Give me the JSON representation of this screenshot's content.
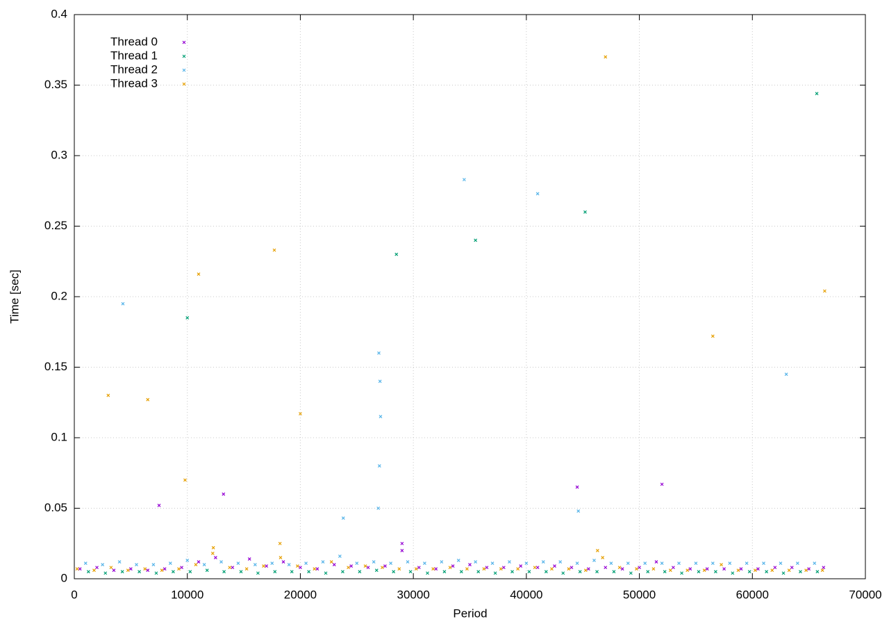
{
  "chart_data": {
    "type": "scatter",
    "x_label": "Period",
    "y_label": "Time [sec]",
    "xlim": [
      0,
      70000
    ],
    "xticks": [
      0,
      10000,
      20000,
      30000,
      40000,
      50000,
      60000,
      70000
    ],
    "ylim": [
      0,
      0.4
    ],
    "yticks": [
      0,
      0.05,
      0.1,
      0.15,
      0.2,
      0.25,
      0.3,
      0.35,
      0.4
    ],
    "grid": true,
    "legend": "top-left",
    "series": [
      {
        "name": "Thread 0",
        "color": "#9400d3",
        "x": [
          500,
          2000,
          3500,
          5000,
          6500,
          8000,
          9500,
          11000,
          12500,
          14000,
          15500,
          17000,
          18500,
          20000,
          21500,
          23000,
          24500,
          26000,
          27500,
          29000,
          30500,
          32000,
          33500,
          35000,
          36500,
          38000,
          39500,
          41000,
          42500,
          44000,
          45500,
          47000,
          48500,
          50000,
          51500,
          53000,
          54500,
          56000,
          57500,
          59000,
          60500,
          62000,
          63500,
          65000,
          66300,
          7500,
          13200,
          29000,
          44500,
          52000
        ],
        "values": [
          0.007,
          0.008,
          0.006,
          0.007,
          0.006,
          0.007,
          0.008,
          0.012,
          0.015,
          0.008,
          0.014,
          0.009,
          0.012,
          0.008,
          0.007,
          0.01,
          0.009,
          0.008,
          0.009,
          0.02,
          0.008,
          0.007,
          0.009,
          0.01,
          0.008,
          0.008,
          0.009,
          0.008,
          0.009,
          0.008,
          0.007,
          0.008,
          0.007,
          0.008,
          0.012,
          0.008,
          0.007,
          0.007,
          0.007,
          0.007,
          0.007,
          0.008,
          0.008,
          0.007,
          0.008,
          0.052,
          0.06,
          0.025,
          0.065,
          0.067
        ]
      },
      {
        "name": "Thread 1",
        "color": "#009e73",
        "x": [
          1250,
          2750,
          4250,
          5750,
          7250,
          8750,
          10250,
          11750,
          13250,
          14750,
          16250,
          17750,
          19250,
          20750,
          22250,
          23750,
          25250,
          26750,
          28250,
          29750,
          31250,
          32750,
          34250,
          35750,
          37250,
          38750,
          40250,
          41750,
          43250,
          44750,
          46250,
          47750,
          49250,
          50750,
          52250,
          53750,
          55250,
          56750,
          58250,
          59750,
          61250,
          62750,
          64250,
          65750,
          10000,
          28500,
          35500,
          45200,
          65700
        ],
        "values": [
          0.005,
          0.004,
          0.005,
          0.005,
          0.004,
          0.005,
          0.005,
          0.006,
          0.005,
          0.005,
          0.004,
          0.005,
          0.005,
          0.005,
          0.004,
          0.005,
          0.005,
          0.006,
          0.005,
          0.005,
          0.004,
          0.005,
          0.005,
          0.005,
          0.004,
          0.005,
          0.005,
          0.005,
          0.004,
          0.005,
          0.005,
          0.005,
          0.004,
          0.005,
          0.005,
          0.004,
          0.005,
          0.005,
          0.004,
          0.005,
          0.005,
          0.004,
          0.005,
          0.005,
          0.185,
          0.23,
          0.24,
          0.26,
          0.344
        ]
      },
      {
        "name": "Thread 2",
        "color": "#56b4e9",
        "x": [
          1000,
          2500,
          4000,
          5500,
          7000,
          8500,
          10000,
          11500,
          13000,
          14500,
          16000,
          17500,
          19000,
          20500,
          22000,
          23500,
          25000,
          26500,
          28000,
          29500,
          31000,
          32500,
          34000,
          35500,
          37000,
          38500,
          40000,
          41500,
          43000,
          44500,
          46000,
          47500,
          49000,
          50500,
          52000,
          53500,
          55000,
          56500,
          58000,
          59500,
          61000,
          62500,
          64000,
          65500,
          26900,
          27000,
          27100,
          27050,
          26950,
          4300,
          34500,
          41000,
          63000,
          23800,
          44600
        ],
        "values": [
          0.011,
          0.01,
          0.012,
          0.01,
          0.01,
          0.011,
          0.013,
          0.01,
          0.012,
          0.011,
          0.01,
          0.011,
          0.01,
          0.011,
          0.012,
          0.016,
          0.011,
          0.012,
          0.011,
          0.012,
          0.011,
          0.012,
          0.013,
          0.012,
          0.011,
          0.012,
          0.011,
          0.012,
          0.012,
          0.011,
          0.013,
          0.011,
          0.011,
          0.011,
          0.011,
          0.011,
          0.011,
          0.011,
          0.011,
          0.011,
          0.011,
          0.011,
          0.011,
          0.011,
          0.05,
          0.08,
          0.115,
          0.14,
          0.16,
          0.195,
          0.283,
          0.273,
          0.145,
          0.043,
          0.048
        ]
      },
      {
        "name": "Thread 3",
        "color": "#e69f00",
        "x": [
          250,
          1750,
          3250,
          4750,
          6250,
          7750,
          9250,
          10750,
          12250,
          13750,
          15250,
          16750,
          18250,
          19750,
          21250,
          22750,
          24250,
          25750,
          27250,
          28750,
          30250,
          31750,
          33250,
          34750,
          36250,
          37750,
          39250,
          40750,
          42250,
          43750,
          45250,
          46750,
          48250,
          49750,
          51250,
          52750,
          54250,
          55750,
          57250,
          58750,
          60250,
          61750,
          63250,
          64750,
          66200,
          3000,
          6500,
          11000,
          17700,
          20000,
          47000,
          56500,
          66400,
          9800,
          46300,
          12300,
          18200
        ],
        "values": [
          0.007,
          0.006,
          0.008,
          0.006,
          0.007,
          0.006,
          0.007,
          0.01,
          0.018,
          0.008,
          0.007,
          0.009,
          0.015,
          0.009,
          0.007,
          0.012,
          0.008,
          0.009,
          0.008,
          0.007,
          0.007,
          0.007,
          0.008,
          0.007,
          0.007,
          0.007,
          0.007,
          0.008,
          0.007,
          0.007,
          0.006,
          0.015,
          0.008,
          0.007,
          0.007,
          0.006,
          0.006,
          0.006,
          0.01,
          0.006,
          0.006,
          0.006,
          0.006,
          0.006,
          0.006,
          0.13,
          0.127,
          0.216,
          0.233,
          0.117,
          0.37,
          0.172,
          0.204,
          0.07,
          0.02,
          0.022,
          0.025
        ]
      }
    ]
  }
}
